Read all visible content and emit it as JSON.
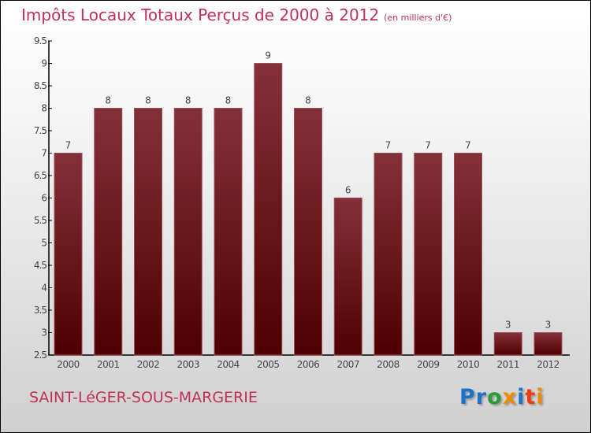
{
  "chart_data": {
    "type": "bar",
    "title": "Impôts Locaux Totaux Perçus de 2000 à 2012",
    "subtitle": "(en milliers d'€)",
    "categories": [
      "2000",
      "2001",
      "2002",
      "2003",
      "2004",
      "2005",
      "2006",
      "2007",
      "2008",
      "2009",
      "2010",
      "2011",
      "2012"
    ],
    "values": [
      7,
      8,
      8,
      8,
      8,
      9,
      8,
      6,
      7,
      7,
      7,
      3,
      3
    ],
    "data_labels": [
      "7",
      "8",
      "8",
      "8",
      "8",
      "9",
      "8",
      "6",
      "7",
      "7",
      "7",
      "3",
      "3"
    ],
    "ylim": [
      2.5,
      9.5
    ],
    "yticks": [
      "2.5",
      "3",
      "3.5",
      "4",
      "4.5",
      "5",
      "5.5",
      "6",
      "6.5",
      "7",
      "7.5",
      "8",
      "8.5",
      "9",
      "9.5"
    ],
    "xlabel": "",
    "ylabel": "",
    "bar_color": "#7a1e24",
    "grid": false
  },
  "footer": {
    "commune": "SAINT-LéGER-SOUS-MARGERIE",
    "logo": "Proxiti"
  },
  "logo_colors": [
    "#1a73c8",
    "#1a73c8",
    "#2a9a3a",
    "#f08a00",
    "#1a73c8",
    "#f03a10",
    "#f08a00",
    "#2a9a3a"
  ]
}
